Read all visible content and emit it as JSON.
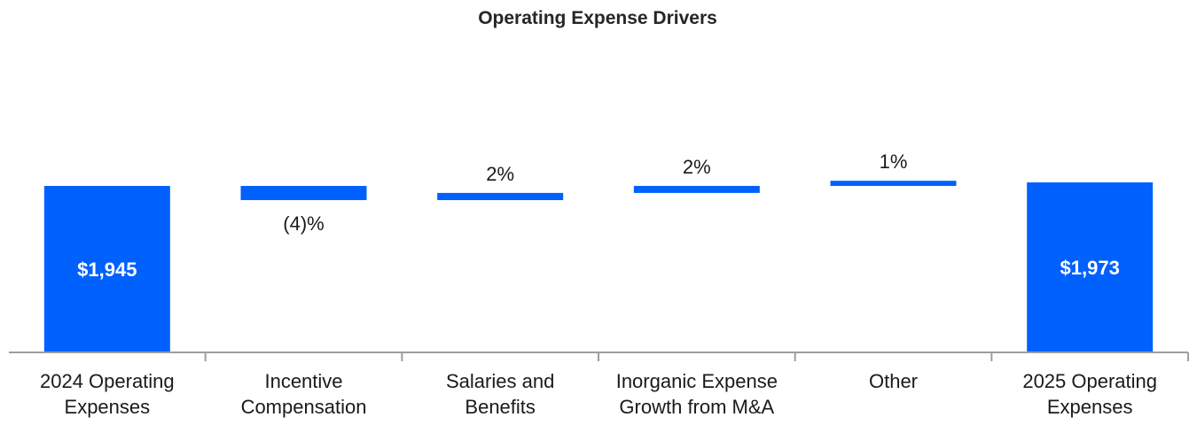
{
  "chart_data": {
    "type": "bar",
    "subtype": "waterfall",
    "title": "Operating Expense Drivers",
    "bar_color": "#0061fe",
    "axis_color": "#9e9e9e",
    "categories": [
      [
        "2024 Operating",
        "Expenses"
      ],
      [
        "Incentive",
        "Compensation"
      ],
      [
        "Salaries and",
        "Benefits"
      ],
      [
        "Inorganic Expense",
        "Growth from M&A"
      ],
      [
        "Other"
      ],
      [
        "2025 Operating",
        "Expenses"
      ]
    ],
    "bars": [
      {
        "kind": "total",
        "start": 0,
        "end": 1945,
        "label": "$1,945"
      },
      {
        "kind": "delta",
        "start": 1945,
        "end": 1868.2,
        "label": "(4)%"
      },
      {
        "kind": "delta",
        "start": 1868.2,
        "end": 1907.1,
        "label": "2%"
      },
      {
        "kind": "delta",
        "start": 1907.1,
        "end": 1945.2,
        "label": "2%"
      },
      {
        "kind": "delta",
        "start": 1945.2,
        "end": 1973,
        "label": "1%"
      },
      {
        "kind": "total",
        "start": 0,
        "end": 1973,
        "label": "$1,973"
      }
    ],
    "ylim": [
      0,
      1973
    ],
    "xlabel": "",
    "ylabel": "",
    "grid": false,
    "legend": "none"
  }
}
